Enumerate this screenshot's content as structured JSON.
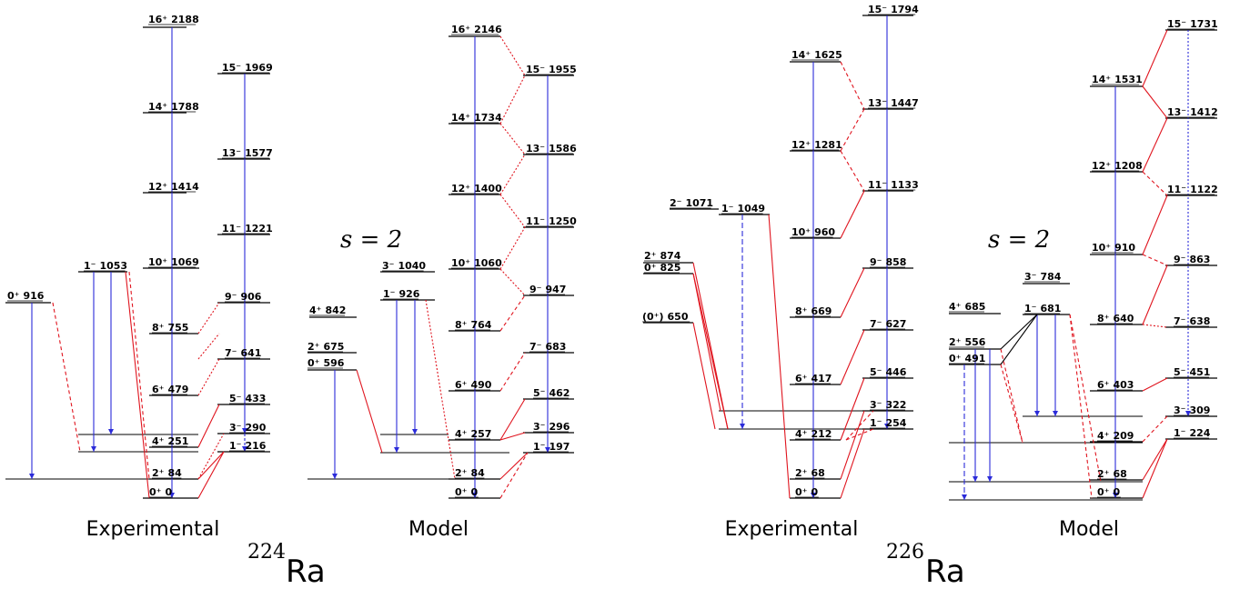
{
  "nuclei": [
    {
      "mass": "224",
      "symbol": "Ra"
    },
    {
      "mass": "226",
      "symbol": "Ra"
    }
  ],
  "captions": {
    "experimental": "Experimental",
    "model": "Model"
  },
  "s_label": "s = 2",
  "colors": {
    "level": "#000000",
    "intraband": "#2b2bd9",
    "interband": "#e0141e",
    "text": "#000000"
  },
  "panels": [
    {
      "id": "ra224-exp",
      "levels": [
        {
          "jp": "0⁺",
          "e": "916"
        },
        {
          "jp": "1⁻",
          "e": "1053"
        },
        {
          "jp": "16⁺",
          "e": "2188"
        },
        {
          "jp": "14⁺",
          "e": "1788"
        },
        {
          "jp": "12⁺",
          "e": "1414"
        },
        {
          "jp": "10⁺",
          "e": "1069"
        },
        {
          "jp": "8⁺",
          "e": "755"
        },
        {
          "jp": "6⁺",
          "e": "479"
        },
        {
          "jp": "4⁺",
          "e": "251"
        },
        {
          "jp": "2⁺",
          "e": "84"
        },
        {
          "jp": "0⁺",
          "e": "0"
        },
        {
          "jp": "15⁻",
          "e": "1969"
        },
        {
          "jp": "13⁻",
          "e": "1577"
        },
        {
          "jp": "11⁻",
          "e": "1221"
        },
        {
          "jp": "9⁻",
          "e": "906"
        },
        {
          "jp": "7⁻",
          "e": "641"
        },
        {
          "jp": "5⁻",
          "e": "433"
        },
        {
          "jp": "3⁻",
          "e": "290"
        },
        {
          "jp": "1⁻",
          "e": "216"
        }
      ]
    },
    {
      "id": "ra224-model",
      "levels": [
        {
          "jp": "4⁺",
          "e": "842"
        },
        {
          "jp": "3⁻",
          "e": "1040"
        },
        {
          "jp": "1⁻",
          "e": "926"
        },
        {
          "jp": "2⁺",
          "e": "675"
        },
        {
          "jp": "0⁺",
          "e": "596"
        },
        {
          "jp": "16⁺",
          "e": "2146"
        },
        {
          "jp": "14⁺",
          "e": "1734"
        },
        {
          "jp": "12⁺",
          "e": "1400"
        },
        {
          "jp": "10⁺",
          "e": "1060"
        },
        {
          "jp": "8⁺",
          "e": "764"
        },
        {
          "jp": "6⁺",
          "e": "490"
        },
        {
          "jp": "4⁺",
          "e": "257"
        },
        {
          "jp": "2⁺",
          "e": "84"
        },
        {
          "jp": "0⁺",
          "e": "0"
        },
        {
          "jp": "15⁻",
          "e": "1955"
        },
        {
          "jp": "13⁻",
          "e": "1586"
        },
        {
          "jp": "11⁻",
          "e": "1250"
        },
        {
          "jp": "9⁻",
          "e": "947"
        },
        {
          "jp": "7⁻",
          "e": "683"
        },
        {
          "jp": "5⁻",
          "e": "462"
        },
        {
          "jp": "3⁻",
          "e": "296"
        },
        {
          "jp": "1⁻",
          "e": "197"
        }
      ]
    },
    {
      "id": "ra226-exp",
      "levels": [
        {
          "jp": "2⁻",
          "e": "1071"
        },
        {
          "jp": "1⁻",
          "e": "1049"
        },
        {
          "jp": "2⁺",
          "e": "874"
        },
        {
          "jp": "0⁺",
          "e": "825"
        },
        {
          "jp": "(0⁺)",
          "e": "650"
        },
        {
          "jp": "14⁺",
          "e": "1625"
        },
        {
          "jp": "12⁺",
          "e": "1281"
        },
        {
          "jp": "10⁺",
          "e": "960"
        },
        {
          "jp": "8⁺",
          "e": "669"
        },
        {
          "jp": "6⁺",
          "e": "417"
        },
        {
          "jp": "4⁺",
          "e": "212"
        },
        {
          "jp": "2⁺",
          "e": "68"
        },
        {
          "jp": "0⁺",
          "e": "0"
        },
        {
          "jp": "15⁻",
          "e": "1794"
        },
        {
          "jp": "13⁻",
          "e": "1447"
        },
        {
          "jp": "11⁻",
          "e": "1133"
        },
        {
          "jp": "9⁻",
          "e": "858"
        },
        {
          "jp": "7⁻",
          "e": "627"
        },
        {
          "jp": "5⁻",
          "e": "446"
        },
        {
          "jp": "3⁻",
          "e": "322"
        },
        {
          "jp": "1⁻",
          "e": "254"
        }
      ]
    },
    {
      "id": "ra226-model",
      "levels": [
        {
          "jp": "3⁻",
          "e": "784"
        },
        {
          "jp": "4⁺",
          "e": "685"
        },
        {
          "jp": "1⁻",
          "e": "681"
        },
        {
          "jp": "2⁺",
          "e": "556"
        },
        {
          "jp": "0⁺",
          "e": "491"
        },
        {
          "jp": "14⁺",
          "e": "1531"
        },
        {
          "jp": "12⁺",
          "e": "1208"
        },
        {
          "jp": "10⁺",
          "e": "910"
        },
        {
          "jp": "8⁺",
          "e": "640"
        },
        {
          "jp": "6⁺",
          "e": "403"
        },
        {
          "jp": "4⁺",
          "e": "209"
        },
        {
          "jp": "2⁺",
          "e": "68"
        },
        {
          "jp": "0⁺",
          "e": "0"
        },
        {
          "jp": "15⁻",
          "e": "1731"
        },
        {
          "jp": "13⁻",
          "e": "1412"
        },
        {
          "jp": "11⁻",
          "e": "1122"
        },
        {
          "jp": "9⁻",
          "e": "863"
        },
        {
          "jp": "7⁻",
          "e": "638"
        },
        {
          "jp": "5⁻",
          "e": "451"
        },
        {
          "jp": "3⁻",
          "e": "309"
        },
        {
          "jp": "1⁻",
          "e": "224"
        }
      ]
    }
  ]
}
